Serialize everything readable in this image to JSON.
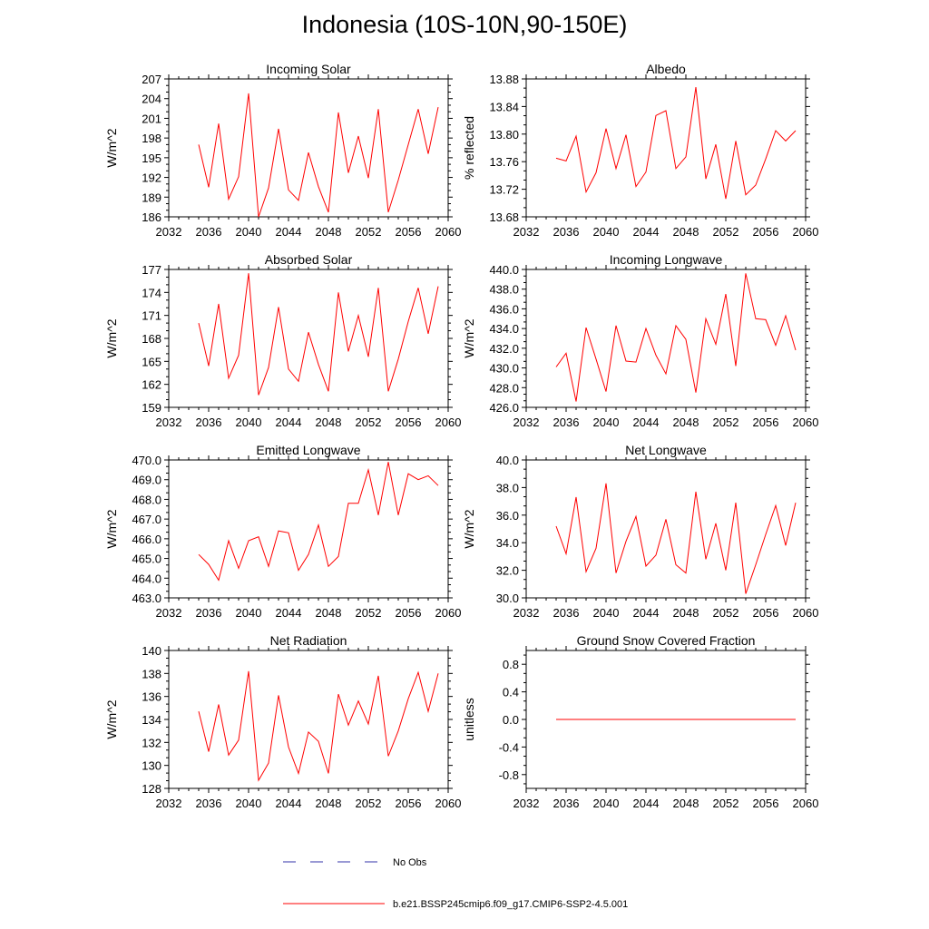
{
  "title": "Indonesia (10S-10N,90-150E)",
  "chart_data": [
    {
      "type": "line",
      "title": "Incoming Solar",
      "ylabel": "W/m^2",
      "xlim": [
        2032,
        2060
      ],
      "ylim": [
        186,
        207
      ],
      "xticks": [
        2032,
        2036,
        2040,
        2044,
        2048,
        2052,
        2056,
        2060
      ],
      "yticks": [
        186,
        189,
        192,
        195,
        198,
        201,
        204,
        207
      ],
      "ytick_labels": [
        "186",
        "189",
        "192",
        "195",
        "198",
        "201",
        "204",
        "207"
      ],
      "x": [
        2035,
        2036,
        2037,
        2038,
        2039,
        2040,
        2041,
        2042,
        2043,
        2044,
        2045,
        2046,
        2047,
        2048,
        2049,
        2050,
        2051,
        2052,
        2053,
        2054,
        2055,
        2056,
        2057,
        2058,
        2059
      ],
      "series": [
        {
          "name": "b.e21.BSSP245cmip6.f09_g17.CMIP6-SSP2-4.5.001",
          "values": [
            197.0,
            190.5,
            200.2,
            188.7,
            192.1,
            204.8,
            186.0,
            190.4,
            199.4,
            190.1,
            188.5,
            195.8,
            190.6,
            186.7,
            201.9,
            192.7,
            198.3,
            191.9,
            202.4,
            186.7,
            191.6,
            197.0,
            202.4,
            195.6,
            202.7
          ]
        }
      ]
    },
    {
      "type": "line",
      "title": "Albedo",
      "ylabel": "% reflected",
      "xlim": [
        2032,
        2060
      ],
      "ylim": [
        13.68,
        13.88
      ],
      "xticks": [
        2032,
        2036,
        2040,
        2044,
        2048,
        2052,
        2056,
        2060
      ],
      "yticks": [
        13.68,
        13.72,
        13.76,
        13.8,
        13.84,
        13.88
      ],
      "ytick_labels": [
        "13.68",
        "13.72",
        "13.76",
        "13.80",
        "13.84",
        "13.88"
      ],
      "x": [
        2035,
        2036,
        2037,
        2038,
        2039,
        2040,
        2041,
        2042,
        2043,
        2044,
        2045,
        2046,
        2047,
        2048,
        2049,
        2050,
        2051,
        2052,
        2053,
        2054,
        2055,
        2056,
        2057,
        2058,
        2059
      ],
      "series": [
        {
          "name": "b.e21.BSSP245cmip6.f09_g17.CMIP6-SSP2-4.5.001",
          "values": [
            13.765,
            13.761,
            13.797,
            13.716,
            13.744,
            13.808,
            13.75,
            13.799,
            13.724,
            13.745,
            13.827,
            13.834,
            13.75,
            13.767,
            13.868,
            13.735,
            13.785,
            13.706,
            13.79,
            13.712,
            13.726,
            13.764,
            13.805,
            13.79,
            13.805
          ]
        }
      ]
    },
    {
      "type": "line",
      "title": "Absorbed Solar",
      "ylabel": "W/m^2",
      "xlim": [
        2032,
        2060
      ],
      "ylim": [
        159,
        177
      ],
      "xticks": [
        2032,
        2036,
        2040,
        2044,
        2048,
        2052,
        2056,
        2060
      ],
      "yticks": [
        159,
        162,
        165,
        168,
        171,
        174,
        177
      ],
      "ytick_labels": [
        "159",
        "162",
        "165",
        "168",
        "171",
        "174",
        "177"
      ],
      "x": [
        2035,
        2036,
        2037,
        2038,
        2039,
        2040,
        2041,
        2042,
        2043,
        2044,
        2045,
        2046,
        2047,
        2048,
        2049,
        2050,
        2051,
        2052,
        2053,
        2054,
        2055,
        2056,
        2057,
        2058,
        2059
      ],
      "series": [
        {
          "name": "b.e21.BSSP245cmip6.f09_g17.CMIP6-SSP2-4.5.001",
          "values": [
            170.0,
            164.4,
            172.5,
            162.8,
            165.8,
            176.5,
            160.6,
            164.2,
            172.1,
            164.0,
            162.4,
            168.8,
            164.6,
            161.1,
            174.0,
            166.3,
            171.0,
            165.6,
            174.6,
            161.1,
            165.3,
            170.2,
            174.6,
            168.6,
            174.8
          ]
        }
      ]
    },
    {
      "type": "line",
      "title": "Incoming Longwave",
      "ylabel": "W/m^2",
      "xlim": [
        2032,
        2060
      ],
      "ylim": [
        426.0,
        440.0
      ],
      "xticks": [
        2032,
        2036,
        2040,
        2044,
        2048,
        2052,
        2056,
        2060
      ],
      "yticks": [
        426,
        428,
        430,
        432,
        434,
        436,
        438,
        440
      ],
      "ytick_labels": [
        "426.0",
        "428.0",
        "430.0",
        "432.0",
        "434.0",
        "436.0",
        "438.0",
        "440.0"
      ],
      "x": [
        2035,
        2036,
        2037,
        2038,
        2039,
        2040,
        2041,
        2042,
        2043,
        2044,
        2045,
        2046,
        2047,
        2048,
        2049,
        2050,
        2051,
        2052,
        2053,
        2054,
        2055,
        2056,
        2057,
        2058,
        2059
      ],
      "series": [
        {
          "name": "b.e21.BSSP245cmip6.f09_g17.CMIP6-SSP2-4.5.001",
          "values": [
            430.1,
            431.5,
            426.6,
            434.1,
            430.9,
            427.6,
            434.3,
            430.7,
            430.6,
            434.0,
            431.3,
            429.4,
            434.3,
            432.9,
            427.5,
            435.0,
            432.4,
            437.5,
            430.2,
            439.6,
            435.0,
            434.9,
            432.3,
            435.3,
            431.8
          ]
        }
      ]
    },
    {
      "type": "line",
      "title": "Emitted Longwave",
      "ylabel": "W/m^2",
      "xlim": [
        2032,
        2060
      ],
      "ylim": [
        463.0,
        470.0
      ],
      "xticks": [
        2032,
        2036,
        2040,
        2044,
        2048,
        2052,
        2056,
        2060
      ],
      "yticks": [
        463,
        464,
        465,
        466,
        467,
        468,
        469,
        470
      ],
      "ytick_labels": [
        "463.0",
        "464.0",
        "465.0",
        "466.0",
        "467.0",
        "468.0",
        "469.0",
        "470.0"
      ],
      "x": [
        2035,
        2036,
        2037,
        2038,
        2039,
        2040,
        2041,
        2042,
        2043,
        2044,
        2045,
        2046,
        2047,
        2048,
        2049,
        2050,
        2051,
        2052,
        2053,
        2054,
        2055,
        2056,
        2057,
        2058,
        2059
      ],
      "series": [
        {
          "name": "b.e21.BSSP245cmip6.f09_g17.CMIP6-SSP2-4.5.001",
          "values": [
            465.2,
            464.7,
            463.9,
            465.9,
            464.5,
            465.9,
            466.1,
            464.6,
            466.4,
            466.3,
            464.4,
            465.2,
            466.7,
            464.6,
            465.1,
            467.8,
            467.8,
            469.5,
            467.2,
            469.9,
            467.2,
            469.3,
            469.0,
            469.2,
            468.7
          ]
        }
      ]
    },
    {
      "type": "line",
      "title": "Net Longwave",
      "ylabel": "W/m^2",
      "xlim": [
        2032,
        2060
      ],
      "ylim": [
        30.0,
        40.0
      ],
      "xticks": [
        2032,
        2036,
        2040,
        2044,
        2048,
        2052,
        2056,
        2060
      ],
      "yticks": [
        30,
        32,
        34,
        36,
        38,
        40
      ],
      "ytick_labels": [
        "30.0",
        "32.0",
        "34.0",
        "36.0",
        "38.0",
        "40.0"
      ],
      "x": [
        2035,
        2036,
        2037,
        2038,
        2039,
        2040,
        2041,
        2042,
        2043,
        2044,
        2045,
        2046,
        2047,
        2048,
        2049,
        2050,
        2051,
        2052,
        2053,
        2054,
        2055,
        2056,
        2057,
        2058,
        2059
      ],
      "series": [
        {
          "name": "b.e21.BSSP245cmip6.f09_g17.CMIP6-SSP2-4.5.001",
          "values": [
            35.2,
            33.2,
            37.3,
            31.9,
            33.6,
            38.3,
            31.8,
            34.1,
            35.9,
            32.3,
            33.1,
            35.7,
            32.4,
            31.8,
            37.7,
            32.8,
            35.4,
            32.0,
            36.9,
            30.3,
            32.4,
            34.6,
            36.7,
            33.8,
            36.9
          ]
        }
      ]
    },
    {
      "type": "line",
      "title": "Net Radiation",
      "ylabel": "W/m^2",
      "xlim": [
        2032,
        2060
      ],
      "ylim": [
        128,
        140
      ],
      "xticks": [
        2032,
        2036,
        2040,
        2044,
        2048,
        2052,
        2056,
        2060
      ],
      "yticks": [
        128,
        130,
        132,
        134,
        136,
        138,
        140
      ],
      "ytick_labels": [
        "128",
        "130",
        "132",
        "134",
        "136",
        "138",
        "140"
      ],
      "x": [
        2035,
        2036,
        2037,
        2038,
        2039,
        2040,
        2041,
        2042,
        2043,
        2044,
        2045,
        2046,
        2047,
        2048,
        2049,
        2050,
        2051,
        2052,
        2053,
        2054,
        2055,
        2056,
        2057,
        2058,
        2059
      ],
      "series": [
        {
          "name": "b.e21.BSSP245cmip6.f09_g17.CMIP6-SSP2-4.5.001",
          "values": [
            134.7,
            131.2,
            135.3,
            130.9,
            132.2,
            138.2,
            128.7,
            130.2,
            136.1,
            131.6,
            129.3,
            132.9,
            132.1,
            129.3,
            136.2,
            133.5,
            135.6,
            133.6,
            137.8,
            130.8,
            133.0,
            135.8,
            138.1,
            134.7,
            138.0
          ]
        }
      ]
    },
    {
      "type": "line",
      "title": "Ground Snow Covered Fraction",
      "ylabel": "unitless",
      "xlim": [
        2032,
        2060
      ],
      "ylim": [
        -1.0,
        1.0
      ],
      "xticks": [
        2032,
        2036,
        2040,
        2044,
        2048,
        2052,
        2056,
        2060
      ],
      "yticks": [
        -0.8,
        -0.4,
        0.0,
        0.4,
        0.8
      ],
      "ytick_labels": [
        "-0.8",
        "-0.4",
        "0.0",
        "0.4",
        "0.8"
      ],
      "x": [
        2035,
        2059
      ],
      "series": [
        {
          "name": "b.e21.BSSP245cmip6.f09_g17.CMIP6-SSP2-4.5.001",
          "values": [
            0.0,
            0.0
          ]
        }
      ]
    }
  ],
  "legend": [
    {
      "label": "No Obs",
      "style": "dashed",
      "color": "#3333aa"
    },
    {
      "label": "b.e21.BSSP245cmip6.f09_g17.CMIP6-SSP2-4.5.001",
      "style": "solid",
      "color": "#ff0000"
    }
  ],
  "colors": {
    "series": "#ff0000",
    "obs": "#3333aa"
  }
}
